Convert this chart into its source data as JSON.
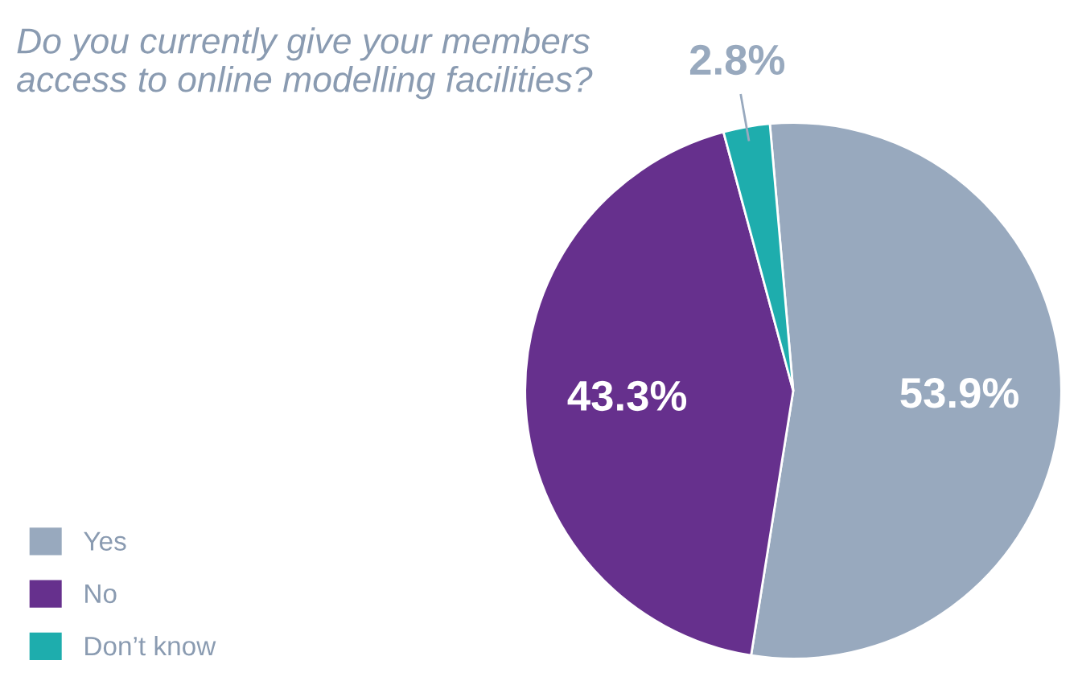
{
  "chart_data": {
    "type": "pie",
    "title": "Do you currently give your members access to online modelling facilities?",
    "categories": [
      "Yes",
      "No",
      "Don’t know"
    ],
    "values": [
      53.9,
      43.3,
      2.8
    ],
    "colors": [
      "#98a9be",
      "#66308d",
      "#1eadad"
    ],
    "value_labels": [
      "53.9%",
      "43.3%",
      "2.8%"
    ],
    "legend": "bottom left"
  }
}
